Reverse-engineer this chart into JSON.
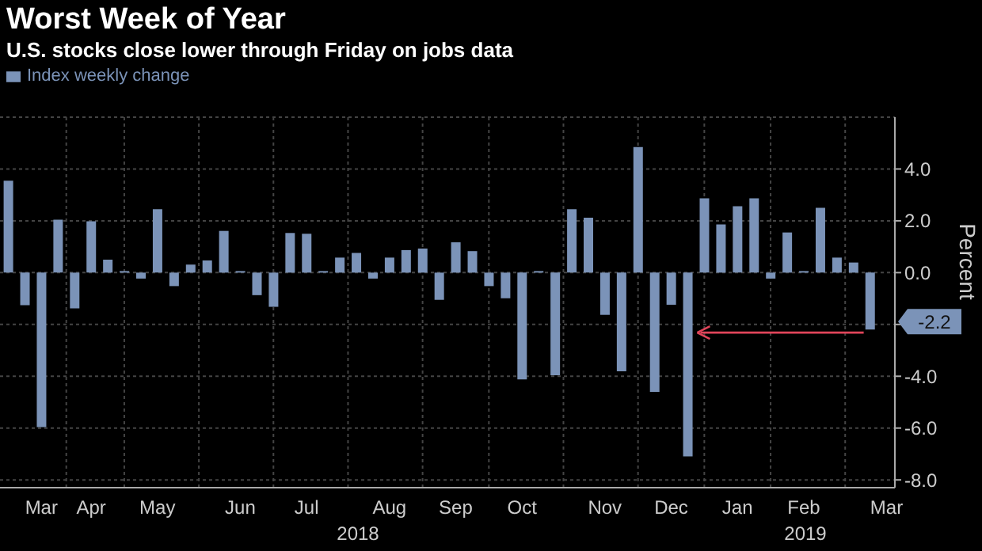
{
  "chart_data": {
    "type": "bar",
    "title": "Worst Week of Year",
    "subtitle": "U.S. stocks close lower through Friday on jobs data",
    "ylabel": "Percent",
    "categories": [
      null,
      null,
      "Mar",
      null,
      null,
      "Apr",
      null,
      null,
      null,
      "May",
      null,
      null,
      null,
      null,
      "Jun",
      null,
      null,
      null,
      "Jul",
      null,
      null,
      null,
      null,
      "Aug",
      null,
      null,
      null,
      "Sep",
      null,
      null,
      null,
      "Oct",
      null,
      null,
      null,
      null,
      "Nov",
      null,
      null,
      null,
      "Dec",
      null,
      null,
      null,
      "Jan",
      null,
      null,
      null,
      "Feb",
      null,
      null,
      null,
      null,
      "Mar"
    ],
    "series": [
      {
        "name": "Index weekly change",
        "color": "#7b93b8",
        "values": [
          3.55,
          -1.26,
          -5.96,
          2.04,
          -1.38,
          1.98,
          0.5,
          0.06,
          -0.23,
          2.45,
          -0.52,
          0.31,
          0.47,
          1.61,
          0.06,
          -0.87,
          -1.32,
          1.53,
          1.5,
          0.06,
          0.58,
          0.76,
          -0.23,
          0.58,
          0.87,
          0.93,
          -1.05,
          1.17,
          0.83,
          -0.52,
          -0.99,
          -4.12,
          0.06,
          -3.96,
          2.45,
          2.12,
          -1.63,
          -3.81,
          4.85,
          -4.6,
          -1.24,
          -7.09,
          2.87,
          1.86,
          2.56,
          2.87,
          -0.23,
          1.55,
          0.06,
          2.5,
          0.58,
          0.39,
          -2.2,
          null
        ]
      }
    ],
    "ylim": [
      -8.3,
      6.0
    ],
    "yticks": [
      {
        "value": -8,
        "label": "-8.0"
      },
      {
        "value": -6,
        "label": "-6.0"
      },
      {
        "value": -4,
        "label": "-4.0"
      },
      {
        "value": -2,
        "label": null
      },
      {
        "value": 0,
        "label": "0.0"
      },
      {
        "value": 2,
        "label": "2.0"
      },
      {
        "value": 4,
        "label": "4.0"
      }
    ],
    "annotations": [
      "2018",
      "2019",
      "-2.2"
    ],
    "grid": true,
    "legend": "top left"
  }
}
